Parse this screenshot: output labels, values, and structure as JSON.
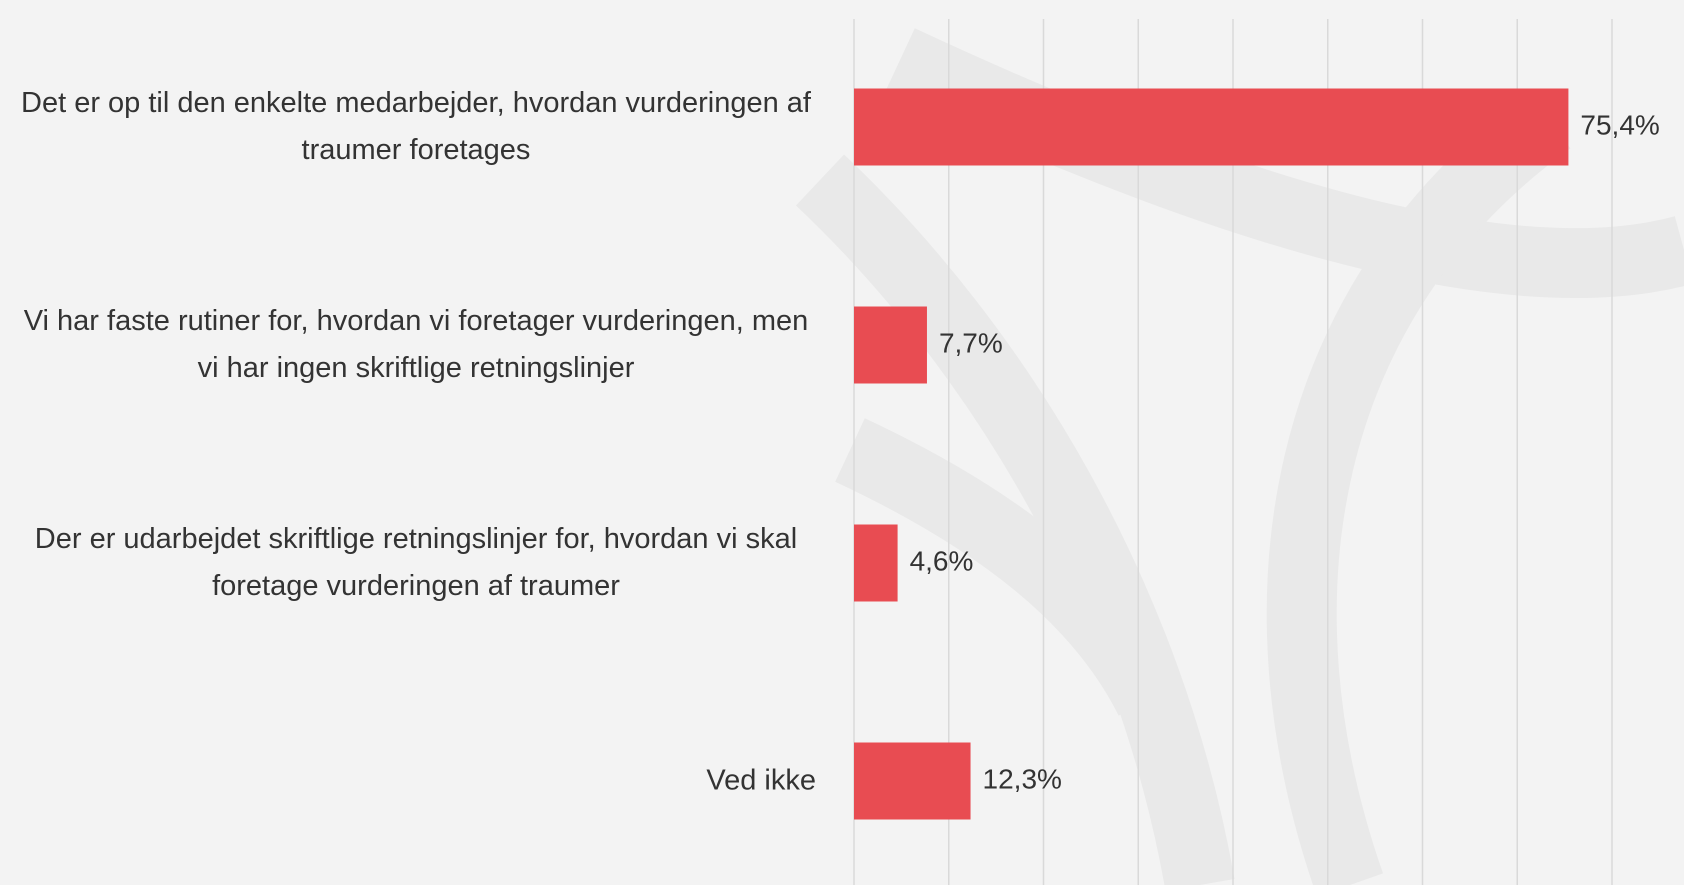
{
  "chart_data": {
    "type": "barh",
    "categories": [
      "Det er op til den enkelte medarbejder, hvordan vurderingen af traumer foretages",
      "Vi har faste rutiner for, hvordan vi foretager vurderingen, men vi har ingen skriftlige retningslinjer",
      "Der er udarbejdet skriftlige retningslinjer for, hvordan vi skal foretage vurderingen af traumer",
      "Ved ikke"
    ],
    "values": [
      75.4,
      7.7,
      4.6,
      12.3
    ],
    "value_labels": [
      "75,4%",
      "7,7%",
      "4,6%",
      "12,3%"
    ],
    "color": "#e84c52",
    "xlim": [
      0,
      80
    ],
    "xticks": [
      0,
      10,
      20,
      30,
      40,
      50,
      60,
      70,
      80
    ],
    "grid": true
  }
}
